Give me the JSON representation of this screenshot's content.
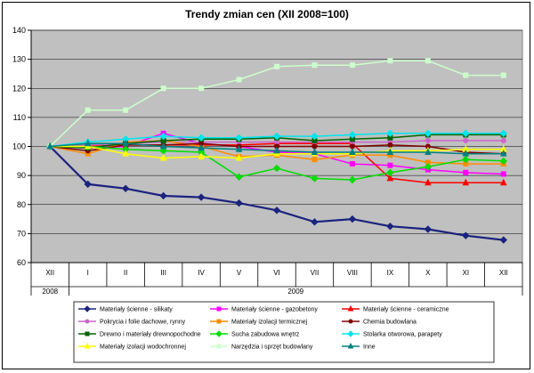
{
  "chart_data": {
    "type": "line",
    "title": "Trendy zmian cen (XII 2008=100)",
    "ylim": [
      60,
      140
    ],
    "yticks": [
      60,
      70,
      80,
      90,
      100,
      110,
      120,
      130,
      140
    ],
    "grid": true,
    "plot_background": "#c0c0c0",
    "legend_position": "bottom",
    "categories": [
      "XII",
      "I",
      "II",
      "III",
      "IV",
      "V",
      "VI",
      "VII",
      "VIII",
      "IX",
      "X",
      "XI",
      "XII"
    ],
    "year_groups": [
      {
        "label": "2008",
        "span": 1
      },
      {
        "label": "2009",
        "span": 12
      }
    ],
    "series": [
      {
        "name": "Materiały ścienne - silikaty",
        "color": "#1a237e",
        "marker": "diamond",
        "values": [
          100,
          87,
          85.5,
          83,
          82.5,
          80.5,
          78,
          74,
          75,
          72.5,
          71.5,
          69.3,
          67.8
        ]
      },
      {
        "name": "Materiały ścienne - gazobetony",
        "color": "#ff00ff",
        "marker": "square",
        "values": [
          100,
          99.5,
          100,
          104.5,
          101,
          100,
          98,
          97.5,
          94,
          93.5,
          92,
          91,
          90.5
        ]
      },
      {
        "name": "Materiały ścienne - ceramiczne",
        "color": "#ff0000",
        "marker": "triangle",
        "values": [
          100,
          100,
          100.5,
          100.5,
          100.5,
          100.5,
          101,
          101,
          101,
          89,
          87.5,
          87.5,
          87.5
        ]
      },
      {
        "name": "Pokrycia i folie dachowe, rynny",
        "color": "#cc66cc",
        "marker": "circle",
        "values": [
          100,
          100.5,
          101,
          101.5,
          101.5,
          101.5,
          101.5,
          101.5,
          101.5,
          101.5,
          102,
          102,
          102
        ]
      },
      {
        "name": "Materiały izolacji termicznej",
        "color": "#ff8c00",
        "marker": "square",
        "values": [
          100,
          97.5,
          101.5,
          102,
          100,
          96.5,
          97,
          95.5,
          97,
          97,
          94.5,
          94,
          94
        ]
      },
      {
        "name": "Chemia budowlana",
        "color": "#800000",
        "marker": "circle",
        "values": [
          100,
          98.5,
          100.5,
          100.5,
          101,
          100,
          100,
          100,
          100,
          100.5,
          100,
          98,
          97.5
        ]
      },
      {
        "name": "Drewno i materiały drewnopochodne",
        "color": "#006400",
        "marker": "square",
        "values": [
          100,
          99.5,
          101,
          102,
          102.5,
          102.5,
          103,
          102,
          102.5,
          103,
          104,
          104,
          104
        ]
      },
      {
        "name": "Sucha zabudowa wnętrz",
        "color": "#00dd00",
        "marker": "diamond",
        "values": [
          100,
          100,
          99,
          98.5,
          98,
          89.5,
          92.5,
          89,
          88.5,
          91,
          93,
          95.5,
          95
        ]
      },
      {
        "name": "Stolarka otworowa, parapety",
        "color": "#00e5ee",
        "marker": "diamond",
        "values": [
          100,
          101.5,
          102.5,
          103.5,
          103,
          103,
          103.5,
          103.5,
          104,
          104.5,
          104.5,
          104.5,
          104.5
        ]
      },
      {
        "name": "Materiały izolacji wodochronnej",
        "color": "#ffff00",
        "marker": "triangle",
        "values": [
          100,
          100,
          97.5,
          96,
          96.5,
          96,
          97.5,
          97.5,
          97.5,
          98.5,
          98.5,
          99,
          99
        ]
      },
      {
        "name": "Narzędzia i sprzęt budowlany",
        "color": "#ccffcc",
        "marker": "square",
        "values": [
          100,
          112.5,
          112.5,
          120,
          120,
          123,
          127.5,
          128,
          128,
          129.5,
          129.5,
          124.5,
          124.5
        ]
      },
      {
        "name": "Inne",
        "color": "#008080",
        "marker": "triangle",
        "values": [
          100,
          101,
          101,
          100,
          99.5,
          99,
          98.5,
          98,
          98,
          98,
          98,
          97.5,
          97.5
        ]
      }
    ]
  }
}
